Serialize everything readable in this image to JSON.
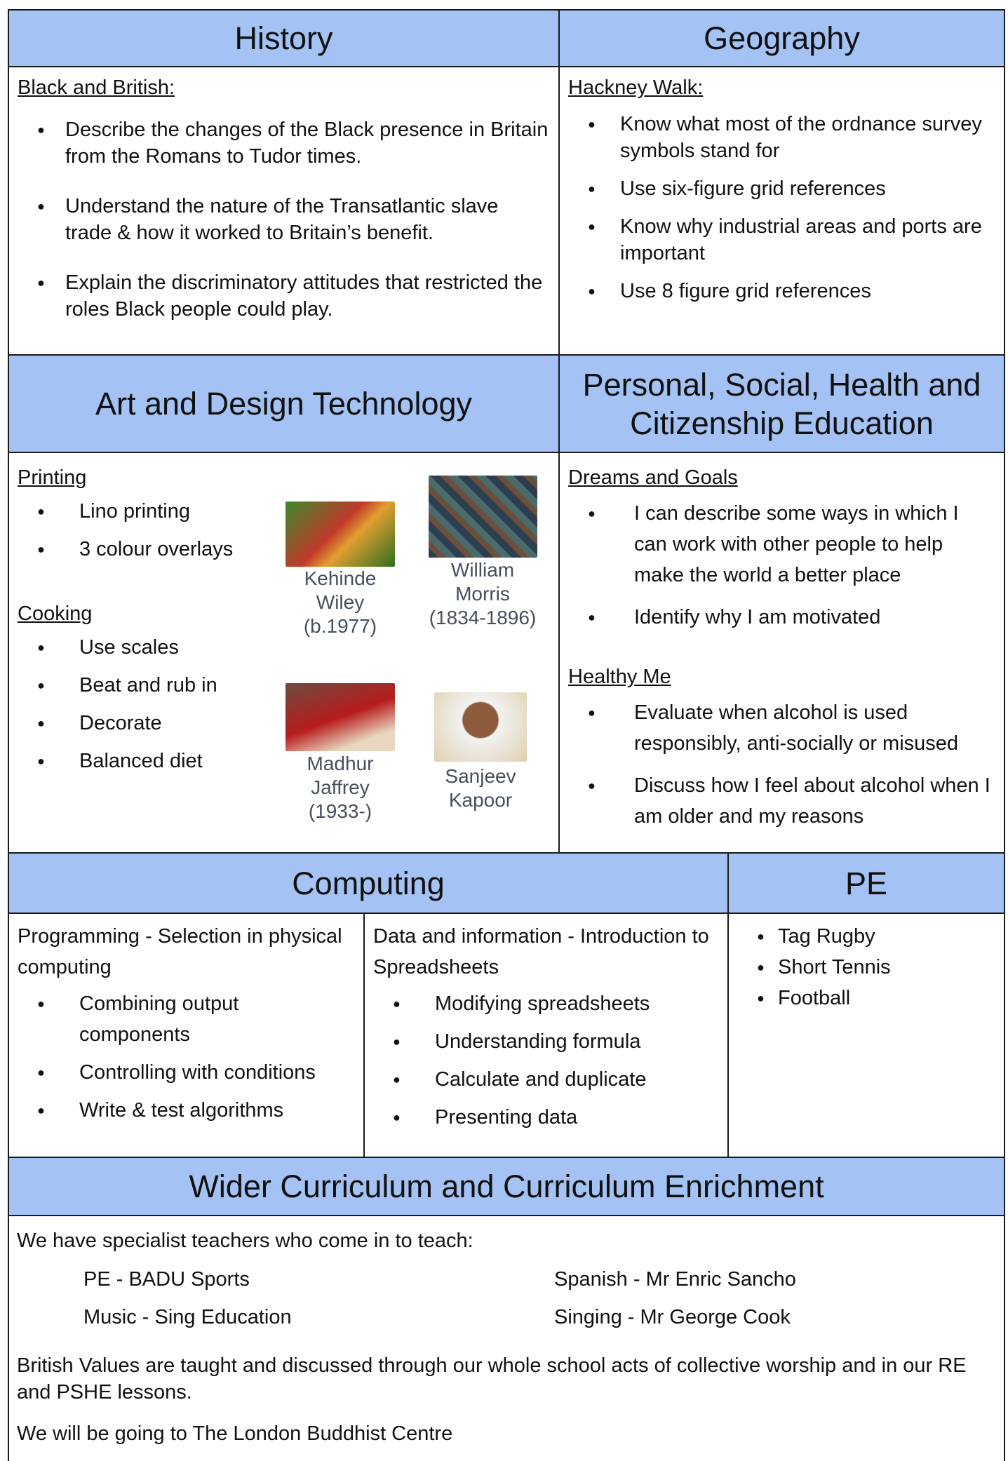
{
  "history": {
    "title": "History",
    "subtitle": "Black and British:",
    "items": [
      "Describe the changes of the Black presence in Britain from the Romans to Tudor times.",
      "Understand the nature of the Transatlantic slave trade & how it worked to Britain’s benefit.",
      "Explain the discriminatory attitudes that restricted the roles Black people could play."
    ]
  },
  "geography": {
    "title": "Geography",
    "subtitle": "Hackney Walk:",
    "items": [
      "Know what most of the ordnance survey symbols stand for",
      "Use six-figure grid references",
      "Know why industrial areas and ports are important",
      "Use 8 figure grid references"
    ]
  },
  "art": {
    "title": "Art and Design Technology",
    "groups": [
      {
        "heading": "Printing",
        "items": [
          "Lino printing",
          "3 colour overlays"
        ]
      },
      {
        "heading": "Cooking",
        "items": [
          "Use scales",
          "Beat and rub in",
          "Decorate",
          "Balanced diet"
        ]
      }
    ],
    "artists": [
      [
        "Kehinde",
        "Wiley",
        "(b.1977)"
      ],
      [
        "William",
        "Morris",
        "(1834-1896)"
      ],
      [
        "Madhur",
        "Jaffrey",
        "(1933-)"
      ],
      [
        "Sanjeev",
        "Kapoor"
      ]
    ]
  },
  "pshe": {
    "title": "Personal, Social, Health and Citizenship Education",
    "groups": [
      {
        "heading": "Dreams and Goals",
        "items": [
          "I can describe some ways in which I can work with other people to help make the world a better place",
          "Identify why I am motivated"
        ]
      },
      {
        "heading": "Healthy Me",
        "items": [
          "Evaluate when alcohol is used responsibly, anti-socially or misused",
          "Discuss how I feel about alcohol when I am older and my reasons"
        ]
      }
    ]
  },
  "computing": {
    "title": "Computing",
    "columns": [
      {
        "heading": "Programming - Selection in physical computing",
        "items": [
          "Combining output components",
          "Controlling with conditions",
          "Write & test algorithms"
        ]
      },
      {
        "heading": "Data and information - Introduction to Spreadsheets",
        "items": [
          "Modifying spreadsheets",
          "Understanding formula",
          "Calculate and duplicate",
          "Presenting data"
        ]
      }
    ]
  },
  "pe": {
    "title": "PE",
    "items": [
      "Tag Rugby",
      "Short Tennis",
      "Football"
    ]
  },
  "wider": {
    "title": "Wider Curriculum and Curriculum Enrichment",
    "intro": "We have specialist teachers who come in to teach:",
    "teachers": [
      "PE - BADU Sports",
      "Music - Sing Education",
      "Spanish - Mr Enric Sancho",
      "Singing - Mr George Cook"
    ],
    "paragraphs": [
      "British Values are taught and discussed through our whole school acts of collective worship and in our RE and PSHE lessons.",
      "We will be going to The London Buddhist Centre"
    ]
  }
}
